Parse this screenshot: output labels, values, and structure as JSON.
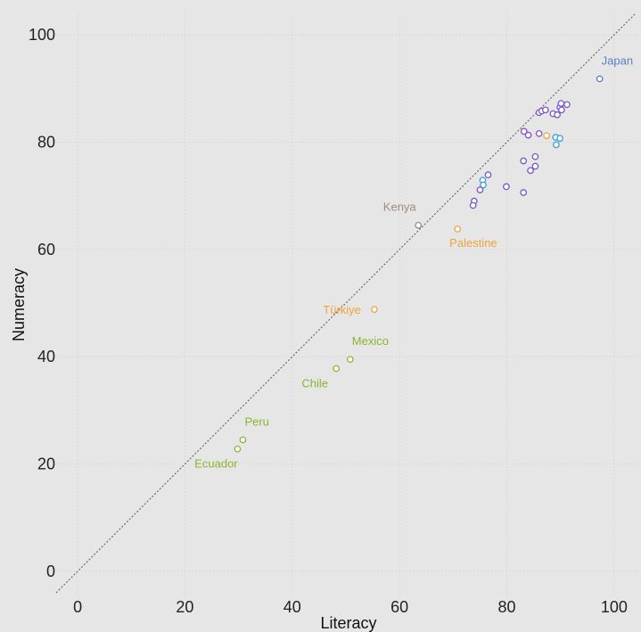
{
  "chart_data": {
    "type": "scatter",
    "title": "",
    "xlabel": "Literacy",
    "ylabel": "Numeracy",
    "xlim": [
      -4,
      105
    ],
    "ylim": [
      -5,
      104
    ],
    "xticks": [
      0,
      20,
      40,
      60,
      80,
      100
    ],
    "yticks": [
      0,
      20,
      40,
      60,
      80,
      100
    ],
    "grid": true,
    "reference_line": "y = x",
    "colors": {
      "background": "#e6e6e6",
      "grid": "#d9d9d9",
      "reference_line": "#555555",
      "purple": "#7b55c9",
      "teal": "#3a9ad9",
      "blue": "#5b7fc6",
      "orange": "#f0a23a",
      "brown": "#a08a78",
      "green": "#8bb530"
    },
    "points": [
      {
        "x": 97.3,
        "y": 91.8,
        "color": "blue",
        "label": "Japan",
        "label_pos": "above-right"
      },
      {
        "x": 63.5,
        "y": 64.5,
        "color": "brown",
        "label": "Kenya",
        "label_pos": "above-left"
      },
      {
        "x": 70.8,
        "y": 63.8,
        "color": "orange",
        "label": "Palestine",
        "label_pos": "below-right"
      },
      {
        "x": 55.3,
        "y": 48.8,
        "color": "orange",
        "label": "Türkiye",
        "label_pos": "left"
      },
      {
        "x": 50.8,
        "y": 39.5,
        "color": "green",
        "label": "Mexico",
        "label_pos": "above-right"
      },
      {
        "x": 48.2,
        "y": 37.8,
        "color": "green",
        "label": "Chile",
        "label_pos": "below-left"
      },
      {
        "x": 30.8,
        "y": 24.5,
        "color": "green",
        "label": "Peru",
        "label_pos": "above-right"
      },
      {
        "x": 29.8,
        "y": 22.8,
        "color": "green",
        "label": "Ecuador",
        "label_pos": "below-left"
      },
      {
        "x": 86.0,
        "y": 85.5,
        "color": "purple",
        "label": ""
      },
      {
        "x": 86.5,
        "y": 85.8,
        "color": "purple",
        "label": ""
      },
      {
        "x": 87.2,
        "y": 86.0,
        "color": "purple",
        "label": ""
      },
      {
        "x": 88.6,
        "y": 85.3,
        "color": "purple",
        "label": ""
      },
      {
        "x": 89.4,
        "y": 85.1,
        "color": "purple",
        "label": ""
      },
      {
        "x": 89.9,
        "y": 86.5,
        "color": "purple",
        "label": ""
      },
      {
        "x": 90.2,
        "y": 86.0,
        "color": "purple",
        "label": ""
      },
      {
        "x": 90.1,
        "y": 87.2,
        "color": "purple",
        "label": ""
      },
      {
        "x": 91.2,
        "y": 87.0,
        "color": "purple",
        "label": ""
      },
      {
        "x": 83.2,
        "y": 82.0,
        "color": "purple",
        "label": ""
      },
      {
        "x": 84.0,
        "y": 81.3,
        "color": "purple",
        "label": ""
      },
      {
        "x": 86.0,
        "y": 81.6,
        "color": "purple",
        "label": ""
      },
      {
        "x": 87.4,
        "y": 81.2,
        "color": "orange",
        "label": ""
      },
      {
        "x": 89.1,
        "y": 80.9,
        "color": "teal",
        "label": ""
      },
      {
        "x": 89.9,
        "y": 80.7,
        "color": "teal",
        "label": ""
      },
      {
        "x": 89.2,
        "y": 79.5,
        "color": "teal",
        "label": ""
      },
      {
        "x": 85.3,
        "y": 77.3,
        "color": "purple",
        "label": ""
      },
      {
        "x": 83.1,
        "y": 76.5,
        "color": "purple",
        "label": ""
      },
      {
        "x": 85.3,
        "y": 75.5,
        "color": "purple",
        "label": ""
      },
      {
        "x": 84.4,
        "y": 74.7,
        "color": "purple",
        "label": ""
      },
      {
        "x": 76.5,
        "y": 73.9,
        "color": "purple",
        "label": ""
      },
      {
        "x": 75.5,
        "y": 72.9,
        "color": "teal",
        "label": ""
      },
      {
        "x": 75.6,
        "y": 72.0,
        "color": "teal",
        "label": ""
      },
      {
        "x": 75.0,
        "y": 71.1,
        "color": "purple",
        "label": ""
      },
      {
        "x": 79.9,
        "y": 71.7,
        "color": "purple",
        "label": ""
      },
      {
        "x": 83.1,
        "y": 70.6,
        "color": "purple",
        "label": ""
      },
      {
        "x": 73.9,
        "y": 69.0,
        "color": "purple",
        "label": ""
      },
      {
        "x": 73.7,
        "y": 68.2,
        "color": "purple",
        "label": ""
      }
    ]
  }
}
